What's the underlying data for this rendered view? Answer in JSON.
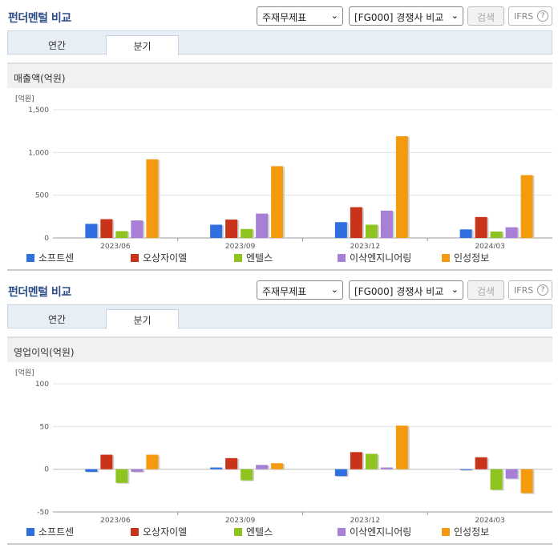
{
  "panels": [
    {
      "title": "펀더멘털 비교",
      "report_select": "주재무제표",
      "compare_select": "[FG000] 경쟁사 비교",
      "search_label": "검색",
      "ifrs_label": "IFRS",
      "help_label": "?",
      "tabs": [
        {
          "label": "연간"
        },
        {
          "label": "분기"
        }
      ],
      "section_title": "매출액(억원)"
    },
    {
      "title": "펀더멘털 비교",
      "report_select": "주재무제표",
      "compare_select": "[FG000] 경쟁사 비교",
      "search_label": "검색",
      "ifrs_label": "IFRS",
      "help_label": "?",
      "tabs": [
        {
          "label": "연간"
        },
        {
          "label": "분기"
        }
      ],
      "section_title": "영업이익(억원)"
    }
  ],
  "colors": {
    "소프트센": "#2f6fdf",
    "오상자이엘": "#c8331a",
    "엔텔스": "#8fc31f",
    "이삭엔지니어링": "#a77fd6",
    "인성정보": "#f39a0f"
  },
  "chart_data": [
    {
      "type": "bar",
      "title": "",
      "unit": "[억원]",
      "categories": [
        "2023/06",
        "2023/09",
        "2023/12",
        "2024/03"
      ],
      "ylim": [
        0,
        1500
      ],
      "yticks": [
        "0",
        "500",
        "1,000",
        "1,500"
      ],
      "ytick_values": [
        0,
        500,
        1000,
        1500
      ],
      "series": [
        {
          "name": "소프트센",
          "values": [
            165,
            155,
            185,
            100
          ]
        },
        {
          "name": "오상자이엘",
          "values": [
            220,
            215,
            360,
            245
          ]
        },
        {
          "name": "엔텔스",
          "values": [
            80,
            105,
            155,
            75
          ]
        },
        {
          "name": "이삭엔지니어링",
          "values": [
            205,
            285,
            320,
            125
          ]
        },
        {
          "name": "인성정보",
          "values": [
            920,
            840,
            1190,
            735
          ]
        }
      ],
      "grid": true,
      "legend_placement": "bottom"
    },
    {
      "type": "bar",
      "title": "",
      "unit": "[억원]",
      "categories": [
        "2023/06",
        "2023/09",
        "2023/12",
        "2024/03"
      ],
      "ylim": [
        -50,
        100
      ],
      "yticks": [
        "-50",
        "0",
        "50",
        "100"
      ],
      "ytick_values": [
        -50,
        0,
        50,
        100
      ],
      "series": [
        {
          "name": "소프트센",
          "values": [
            -3,
            2,
            -8,
            0
          ]
        },
        {
          "name": "오상자이엘",
          "values": [
            17,
            13,
            20,
            14
          ]
        },
        {
          "name": "엔텔스",
          "values": [
            -16,
            -13,
            18,
            -24
          ]
        },
        {
          "name": "이삭엔지니어링",
          "values": [
            -3,
            5,
            2,
            -11
          ]
        },
        {
          "name": "인성정보",
          "values": [
            17,
            7,
            51,
            -28
          ]
        }
      ],
      "grid": true,
      "legend_placement": "bottom"
    }
  ]
}
